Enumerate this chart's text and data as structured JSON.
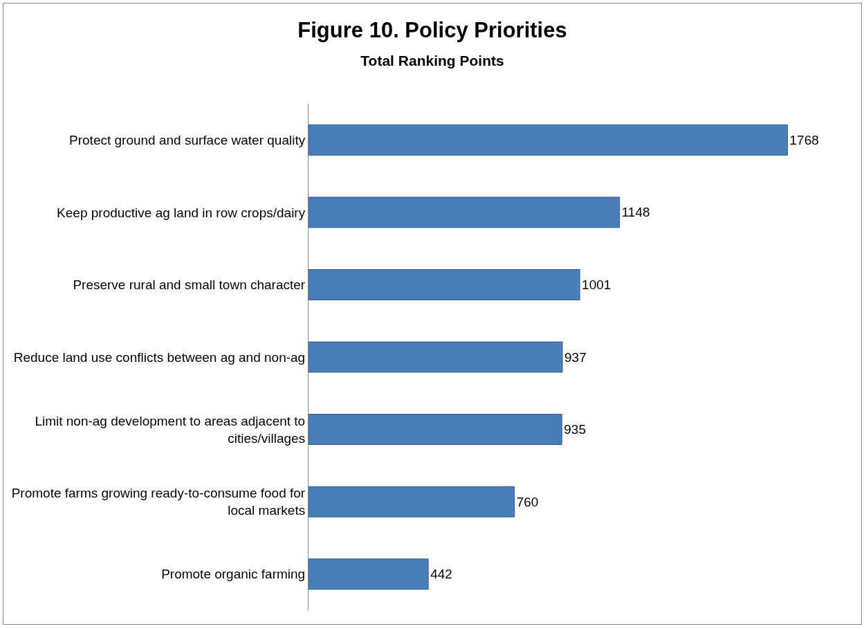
{
  "chart_data": {
    "type": "bar",
    "orientation": "horizontal",
    "title": "Figure 10. Policy Priorities",
    "subtitle": "Total Ranking Points",
    "categories": [
      "Protect ground and surface water quality",
      "Keep productive ag land in row crops/dairy",
      "Preserve rural and small town character",
      "Reduce land use conflicts between ag and non-ag",
      "Limit non-ag development to areas adjacent to cities/villages",
      "Promote farms growing ready-to-consume food for local markets",
      "Promote organic farming"
    ],
    "values": [
      1768,
      1148,
      1001,
      937,
      935,
      760,
      442
    ],
    "color": "#4a7ebb",
    "data_labels": true,
    "grid": false
  }
}
